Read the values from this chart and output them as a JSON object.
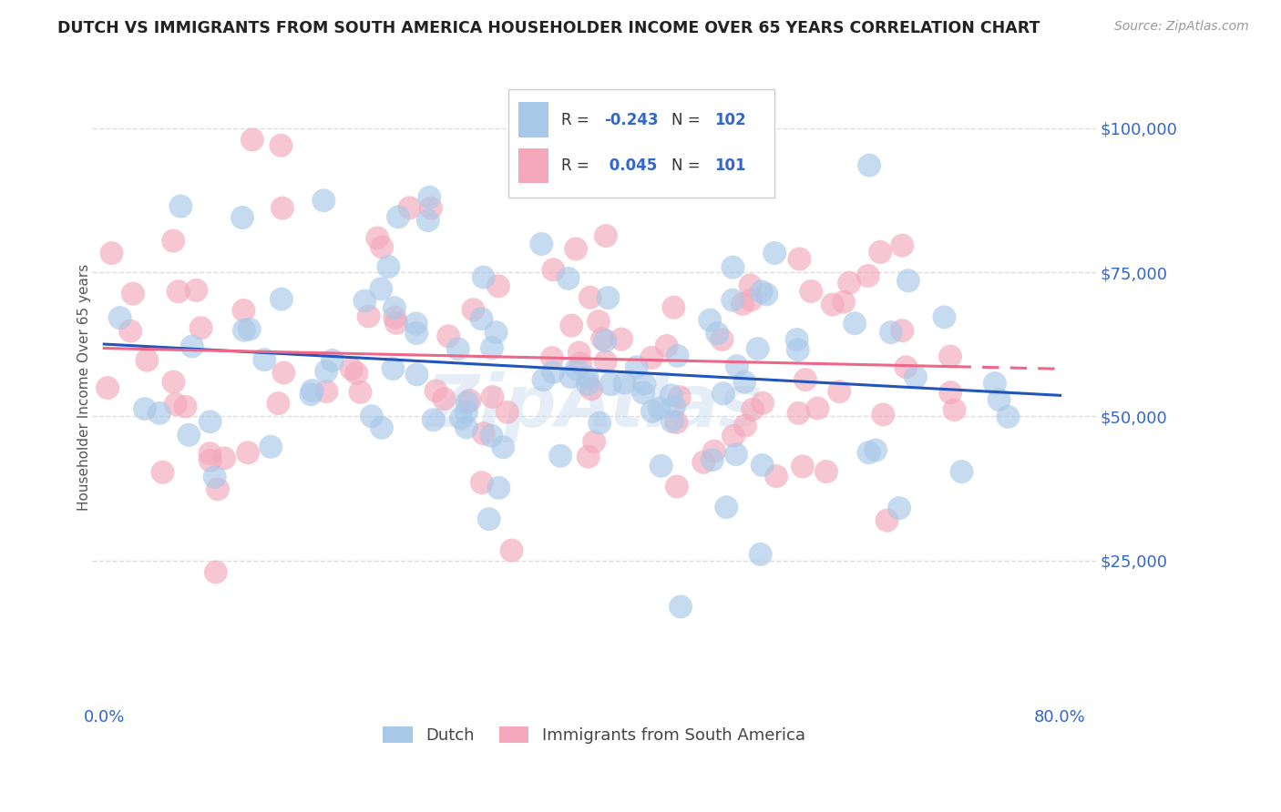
{
  "title": "DUTCH VS IMMIGRANTS FROM SOUTH AMERICA HOUSEHOLDER INCOME OVER 65 YEARS CORRELATION CHART",
  "source": "Source: ZipAtlas.com",
  "ylabel": "Householder Income Over 65 years",
  "ytick_labels": [
    "$25,000",
    "$50,000",
    "$75,000",
    "$100,000"
  ],
  "ytick_values": [
    25000,
    50000,
    75000,
    100000
  ],
  "ymin": 0,
  "ymax": 110000,
  "xmin": -0.01,
  "xmax": 0.83,
  "dutch_R": -0.243,
  "dutch_N": 102,
  "sa_R": 0.045,
  "sa_N": 101,
  "dutch_color": "#A8C8E8",
  "sa_color": "#F4A8BC",
  "dutch_line_color": "#2255BB",
  "sa_line_color": "#EE6688",
  "background_color": "#FFFFFF",
  "grid_color": "#DDDDDD",
  "title_color": "#222222",
  "axis_label_color": "#3366CC",
  "legend_R_color": "#3366CC",
  "watermark": "ZipAtlas"
}
